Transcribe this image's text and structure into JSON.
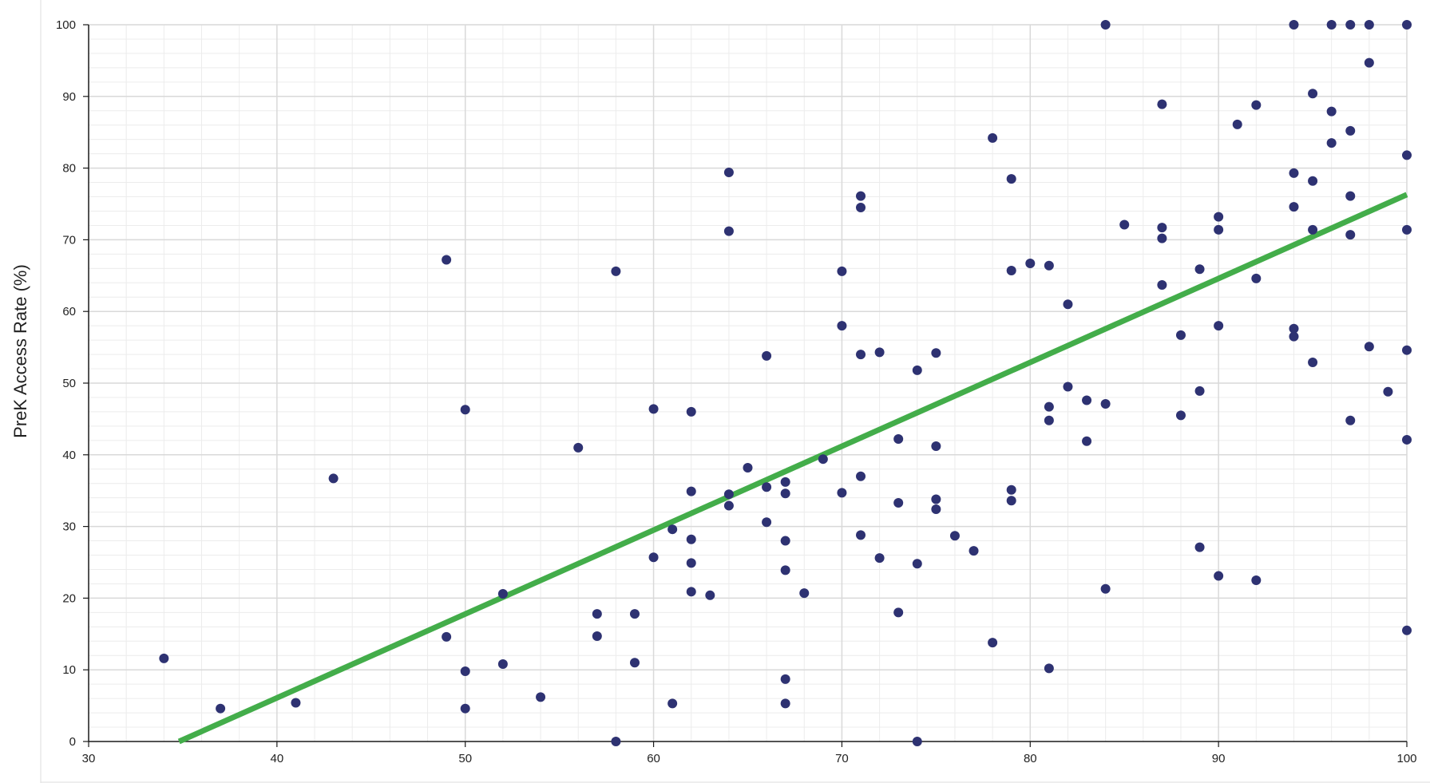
{
  "chart_data": {
    "type": "scatter",
    "ylabel": "PreK Access Rate (%)",
    "xlabel": "",
    "xlim": [
      30,
      100
    ],
    "ylim": [
      0,
      100
    ],
    "x_ticks": [
      "30",
      "40",
      "50",
      "60",
      "70",
      "80",
      "90",
      "100"
    ],
    "y_ticks": [
      "0",
      "10",
      "20",
      "30",
      "40",
      "50",
      "60",
      "70",
      "80",
      "90",
      "100"
    ],
    "grid": true,
    "point_color": "#2e3272",
    "trendline_color": "#43ad4a",
    "trendline": {
      "x": [
        34.8,
        100
      ],
      "y": [
        0,
        76.3
      ]
    },
    "points": [
      {
        "x": 34,
        "y": 11.6
      },
      {
        "x": 37,
        "y": 4.6
      },
      {
        "x": 41,
        "y": 5.4
      },
      {
        "x": 43,
        "y": 36.7
      },
      {
        "x": 49,
        "y": 67.2
      },
      {
        "x": 49,
        "y": 14.6
      },
      {
        "x": 50,
        "y": 46.3
      },
      {
        "x": 50,
        "y": 9.8
      },
      {
        "x": 50,
        "y": 4.6
      },
      {
        "x": 52,
        "y": 20.6
      },
      {
        "x": 52,
        "y": 10.8
      },
      {
        "x": 54,
        "y": 6.2
      },
      {
        "x": 56,
        "y": 41.0
      },
      {
        "x": 57,
        "y": 17.8
      },
      {
        "x": 57,
        "y": 14.7
      },
      {
        "x": 58,
        "y": 65.6
      },
      {
        "x": 58,
        "y": 0
      },
      {
        "x": 59,
        "y": 17.8
      },
      {
        "x": 59,
        "y": 11.0
      },
      {
        "x": 60,
        "y": 46.4
      },
      {
        "x": 60,
        "y": 25.7
      },
      {
        "x": 61,
        "y": 29.6
      },
      {
        "x": 61,
        "y": 5.3
      },
      {
        "x": 62,
        "y": 46.0
      },
      {
        "x": 62,
        "y": 34.9
      },
      {
        "x": 62,
        "y": 28.2
      },
      {
        "x": 62,
        "y": 24.9
      },
      {
        "x": 62,
        "y": 20.9
      },
      {
        "x": 63,
        "y": 20.4
      },
      {
        "x": 64,
        "y": 79.4
      },
      {
        "x": 64,
        "y": 71.2
      },
      {
        "x": 64,
        "y": 34.5
      },
      {
        "x": 64,
        "y": 32.9
      },
      {
        "x": 65,
        "y": 38.2
      },
      {
        "x": 66,
        "y": 53.8
      },
      {
        "x": 66,
        "y": 35.5
      },
      {
        "x": 66,
        "y": 30.6
      },
      {
        "x": 67,
        "y": 36.2
      },
      {
        "x": 67,
        "y": 34.6
      },
      {
        "x": 67,
        "y": 28.0
      },
      {
        "x": 67,
        "y": 23.9
      },
      {
        "x": 67,
        "y": 8.7
      },
      {
        "x": 67,
        "y": 5.3
      },
      {
        "x": 68,
        "y": 20.7
      },
      {
        "x": 69,
        "y": 39.4
      },
      {
        "x": 70,
        "y": 65.6
      },
      {
        "x": 70,
        "y": 58.0
      },
      {
        "x": 70,
        "y": 34.7
      },
      {
        "x": 71,
        "y": 76.1
      },
      {
        "x": 71,
        "y": 74.5
      },
      {
        "x": 71,
        "y": 54.0
      },
      {
        "x": 71,
        "y": 37.0
      },
      {
        "x": 71,
        "y": 28.8
      },
      {
        "x": 72,
        "y": 54.3
      },
      {
        "x": 72,
        "y": 25.6
      },
      {
        "x": 73,
        "y": 42.2
      },
      {
        "x": 73,
        "y": 33.3
      },
      {
        "x": 73,
        "y": 18.0
      },
      {
        "x": 74,
        "y": 51.8
      },
      {
        "x": 74,
        "y": 24.8
      },
      {
        "x": 74,
        "y": 0
      },
      {
        "x": 75,
        "y": 54.2
      },
      {
        "x": 75,
        "y": 41.2
      },
      {
        "x": 75,
        "y": 33.8
      },
      {
        "x": 75,
        "y": 32.4
      },
      {
        "x": 76,
        "y": 28.7
      },
      {
        "x": 77,
        "y": 26.6
      },
      {
        "x": 78,
        "y": 84.2
      },
      {
        "x": 78,
        "y": 13.8
      },
      {
        "x": 79,
        "y": 78.5
      },
      {
        "x": 79,
        "y": 65.7
      },
      {
        "x": 79,
        "y": 35.1
      },
      {
        "x": 79,
        "y": 33.6
      },
      {
        "x": 80,
        "y": 66.7
      },
      {
        "x": 81,
        "y": 66.4
      },
      {
        "x": 81,
        "y": 46.7
      },
      {
        "x": 81,
        "y": 44.8
      },
      {
        "x": 81,
        "y": 10.2
      },
      {
        "x": 82,
        "y": 61.0
      },
      {
        "x": 82,
        "y": 49.5
      },
      {
        "x": 83,
        "y": 47.6
      },
      {
        "x": 83,
        "y": 41.9
      },
      {
        "x": 84,
        "y": 100
      },
      {
        "x": 84,
        "y": 47.1
      },
      {
        "x": 84,
        "y": 21.3
      },
      {
        "x": 85,
        "y": 72.1
      },
      {
        "x": 87,
        "y": 88.9
      },
      {
        "x": 87,
        "y": 71.7
      },
      {
        "x": 87,
        "y": 70.2
      },
      {
        "x": 87,
        "y": 63.7
      },
      {
        "x": 88,
        "y": 56.7
      },
      {
        "x": 88,
        "y": 45.5
      },
      {
        "x": 89,
        "y": 65.9
      },
      {
        "x": 89,
        "y": 48.9
      },
      {
        "x": 89,
        "y": 27.1
      },
      {
        "x": 90,
        "y": 73.2
      },
      {
        "x": 90,
        "y": 71.4
      },
      {
        "x": 90,
        "y": 58.0
      },
      {
        "x": 90,
        "y": 23.1
      },
      {
        "x": 91,
        "y": 86.1
      },
      {
        "x": 92,
        "y": 88.8
      },
      {
        "x": 92,
        "y": 64.6
      },
      {
        "x": 92,
        "y": 22.5
      },
      {
        "x": 94,
        "y": 100
      },
      {
        "x": 94,
        "y": 79.3
      },
      {
        "x": 94,
        "y": 74.6
      },
      {
        "x": 94,
        "y": 57.6
      },
      {
        "x": 94,
        "y": 56.5
      },
      {
        "x": 95,
        "y": 90.4
      },
      {
        "x": 95,
        "y": 78.2
      },
      {
        "x": 95,
        "y": 71.4
      },
      {
        "x": 95,
        "y": 52.9
      },
      {
        "x": 96,
        "y": 100
      },
      {
        "x": 96,
        "y": 87.9
      },
      {
        "x": 96,
        "y": 83.5
      },
      {
        "x": 97,
        "y": 100
      },
      {
        "x": 97,
        "y": 85.2
      },
      {
        "x": 97,
        "y": 76.1
      },
      {
        "x": 97,
        "y": 70.7
      },
      {
        "x": 97,
        "y": 44.8
      },
      {
        "x": 98,
        "y": 100
      },
      {
        "x": 98,
        "y": 94.7
      },
      {
        "x": 98,
        "y": 55.1
      },
      {
        "x": 99,
        "y": 48.8
      },
      {
        "x": 100,
        "y": 100
      },
      {
        "x": 100,
        "y": 81.8
      },
      {
        "x": 100,
        "y": 71.4
      },
      {
        "x": 100,
        "y": 54.6
      },
      {
        "x": 100,
        "y": 42.1
      },
      {
        "x": 100,
        "y": 15.5
      }
    ]
  }
}
